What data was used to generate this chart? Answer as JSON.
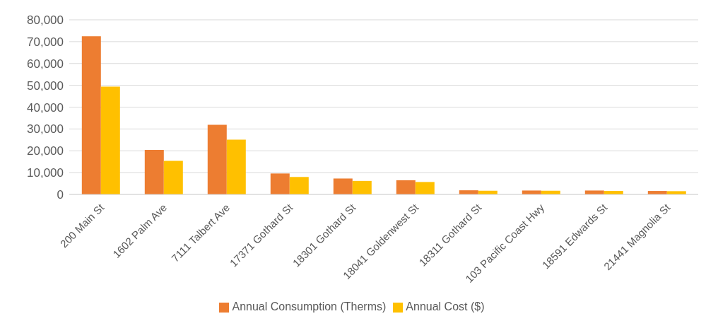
{
  "chart_data": {
    "type": "bar",
    "categories": [
      "200 Main St",
      "1602 Palm Ave",
      "7111 Talbert Ave",
      "17371 Gothard St",
      "18301 Gothard St",
      "18041 Goldenwest St",
      "18311 Gothard St",
      "103 Pacific Coast Hwy",
      "18591 Edwards St",
      "21441 Magnolia St"
    ],
    "series": [
      {
        "name": "Annual Consumption (Therms)",
        "color": "#ed7d31",
        "values": [
          72500,
          20400,
          31900,
          9600,
          7300,
          6500,
          1900,
          1800,
          1800,
          1600
        ]
      },
      {
        "name": "Annual Cost ($)",
        "color": "#ffc000",
        "values": [
          49400,
          15400,
          25100,
          8000,
          6200,
          5700,
          1700,
          1700,
          1600,
          1500
        ]
      }
    ],
    "ylim": [
      0,
      80000
    ],
    "yticks": [
      0,
      {
        "value": 10000,
        "label": "10,000"
      },
      {
        "value": 20000,
        "label": "20,000"
      },
      {
        "value": 30000,
        "label": "30,000"
      },
      {
        "value": 40000,
        "label": "40,000"
      },
      {
        "value": 50000,
        "label": "50,000"
      },
      {
        "value": 60000,
        "label": "60,000"
      },
      {
        "value": 70000,
        "label": "70,000"
      },
      {
        "value": 80000,
        "label": "80,000"
      }
    ],
    "grid": "y",
    "legend": "bottom"
  }
}
